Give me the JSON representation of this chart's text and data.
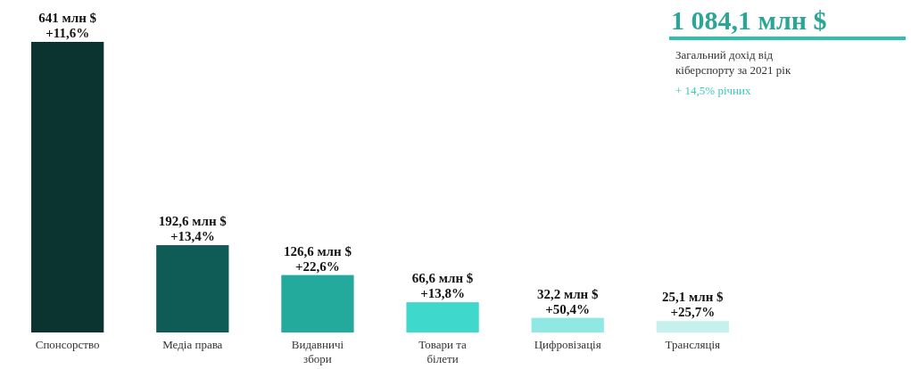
{
  "chart_data": {
    "type": "bar",
    "title": "1 084,1 млн $",
    "subtitle": "Загальний дохід від кіберспорту за 2021 рік",
    "annotations": [
      "+ 14,5% річних"
    ],
    "categories": [
      "Спонсорство",
      "Медіа права",
      "Видавничі збори",
      "Товари та білети",
      "Цифровізація",
      "Трансляція"
    ],
    "values": [
      641,
      192.6,
      126.6,
      66.6,
      32.2,
      25.1
    ],
    "colors": [
      "#0b3330",
      "#0f5b56",
      "#23aa9c",
      "#3ed8cc",
      "#8fe8e2",
      "#c4f1ee"
    ],
    "value_labels": [
      "641 млн $\n+11,6%",
      "192,6 млн $\n+13,4%",
      "126,6 млн $\n+22,6%",
      "66,6 млн $\n+13,8%",
      "32,2 млн $\n+50,4%",
      "25,1 млн $\n+25,7%"
    ]
  }
}
